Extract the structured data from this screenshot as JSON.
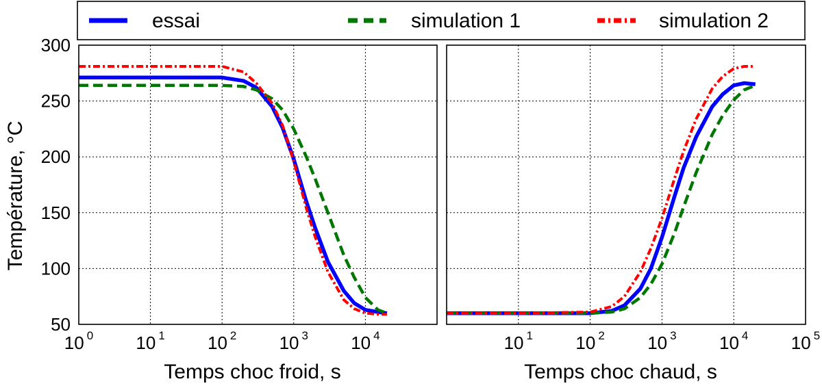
{
  "legend": {
    "items": [
      {
        "label": "essai",
        "color": "#0000ff",
        "dash": "solid"
      },
      {
        "label": "simulation 1",
        "color": "#007700",
        "dash": "dash"
      },
      {
        "label": "simulation 2",
        "color": "#ff0000",
        "dash": "dashdot"
      }
    ]
  },
  "ylabel": "Température, °C",
  "chart_data": [
    {
      "type": "line",
      "xlabel": "Temps choc froid, s",
      "ylabel": "Température, °C",
      "xscale": "log",
      "xlim": [
        1,
        100000
      ],
      "ylim": [
        50,
        300
      ],
      "xticks": [
        {
          "base": "10",
          "exp": "0",
          "value": 1
        },
        {
          "base": "10",
          "exp": "1",
          "value": 10
        },
        {
          "base": "10",
          "exp": "2",
          "value": 100
        },
        {
          "base": "10",
          "exp": "3",
          "value": 1000
        },
        {
          "base": "10",
          "exp": "4",
          "value": 10000
        }
      ],
      "yticks": [
        "50",
        "100",
        "150",
        "200",
        "250",
        "300"
      ],
      "grid": true,
      "series": [
        {
          "name": "essai",
          "color": "#0000ff",
          "x": [
            1,
            10,
            100,
            200,
            300,
            500,
            700,
            1000,
            1500,
            2000,
            3000,
            5000,
            7000,
            10000,
            15000,
            20000
          ],
          "y": [
            271,
            271,
            271,
            268,
            262,
            245,
            226,
            198,
            160,
            136,
            106,
            80,
            69,
            63,
            61,
            60
          ]
        },
        {
          "name": "simulation 1",
          "color": "#007700",
          "x": [
            1,
            10,
            100,
            200,
            300,
            500,
            700,
            1000,
            1500,
            2000,
            3000,
            5000,
            7000,
            10000,
            15000,
            20000
          ],
          "y": [
            264,
            264,
            264,
            263,
            260,
            252,
            242,
            225,
            200,
            180,
            150,
            112,
            92,
            74,
            63,
            60
          ]
        },
        {
          "name": "simulation 2",
          "color": "#ff0000",
          "x": [
            1,
            10,
            100,
            200,
            300,
            500,
            700,
            1000,
            1500,
            2000,
            3000,
            5000,
            7000,
            10000,
            15000,
            20000
          ],
          "y": [
            281,
            281,
            281,
            276,
            266,
            248,
            228,
            196,
            154,
            128,
            97,
            72,
            64,
            60,
            59,
            59
          ]
        }
      ]
    },
    {
      "type": "line",
      "xlabel": "Temps choc chaud, s",
      "xscale": "log",
      "xlim": [
        1,
        100000
      ],
      "ylim": [
        50,
        300
      ],
      "xticks": [
        {
          "base": "10",
          "exp": "1",
          "value": 10
        },
        {
          "base": "10",
          "exp": "2",
          "value": 100
        },
        {
          "base": "10",
          "exp": "3",
          "value": 1000
        },
        {
          "base": "10",
          "exp": "4",
          "value": 10000
        },
        {
          "base": "10",
          "exp": "5",
          "value": 100000
        }
      ],
      "yticks": [],
      "grid": true,
      "series": [
        {
          "name": "essai",
          "color": "#0000ff",
          "x": [
            1,
            10,
            100,
            200,
            300,
            500,
            700,
            1000,
            1500,
            2000,
            3000,
            5000,
            7000,
            10000,
            14000,
            20000
          ],
          "y": [
            60,
            60,
            60,
            62,
            67,
            82,
            100,
            128,
            165,
            190,
            218,
            245,
            256,
            264,
            266,
            265
          ]
        },
        {
          "name": "simulation 1",
          "color": "#007700",
          "x": [
            1,
            10,
            100,
            200,
            300,
            500,
            700,
            1000,
            1500,
            2000,
            3000,
            5000,
            7000,
            10000,
            14000,
            20000
          ],
          "y": [
            60,
            60,
            60,
            61,
            64,
            74,
            86,
            104,
            132,
            155,
            186,
            220,
            237,
            251,
            260,
            264
          ]
        },
        {
          "name": "simulation 2",
          "color": "#ff0000",
          "x": [
            1,
            10,
            100,
            200,
            300,
            500,
            700,
            1000,
            1500,
            2000,
            3000,
            5000,
            7000,
            10000,
            14000,
            20000
          ],
          "y": [
            60,
            60,
            61,
            66,
            75,
            97,
            118,
            145,
            181,
            205,
            234,
            261,
            272,
            279,
            281,
            281
          ]
        }
      ]
    }
  ]
}
